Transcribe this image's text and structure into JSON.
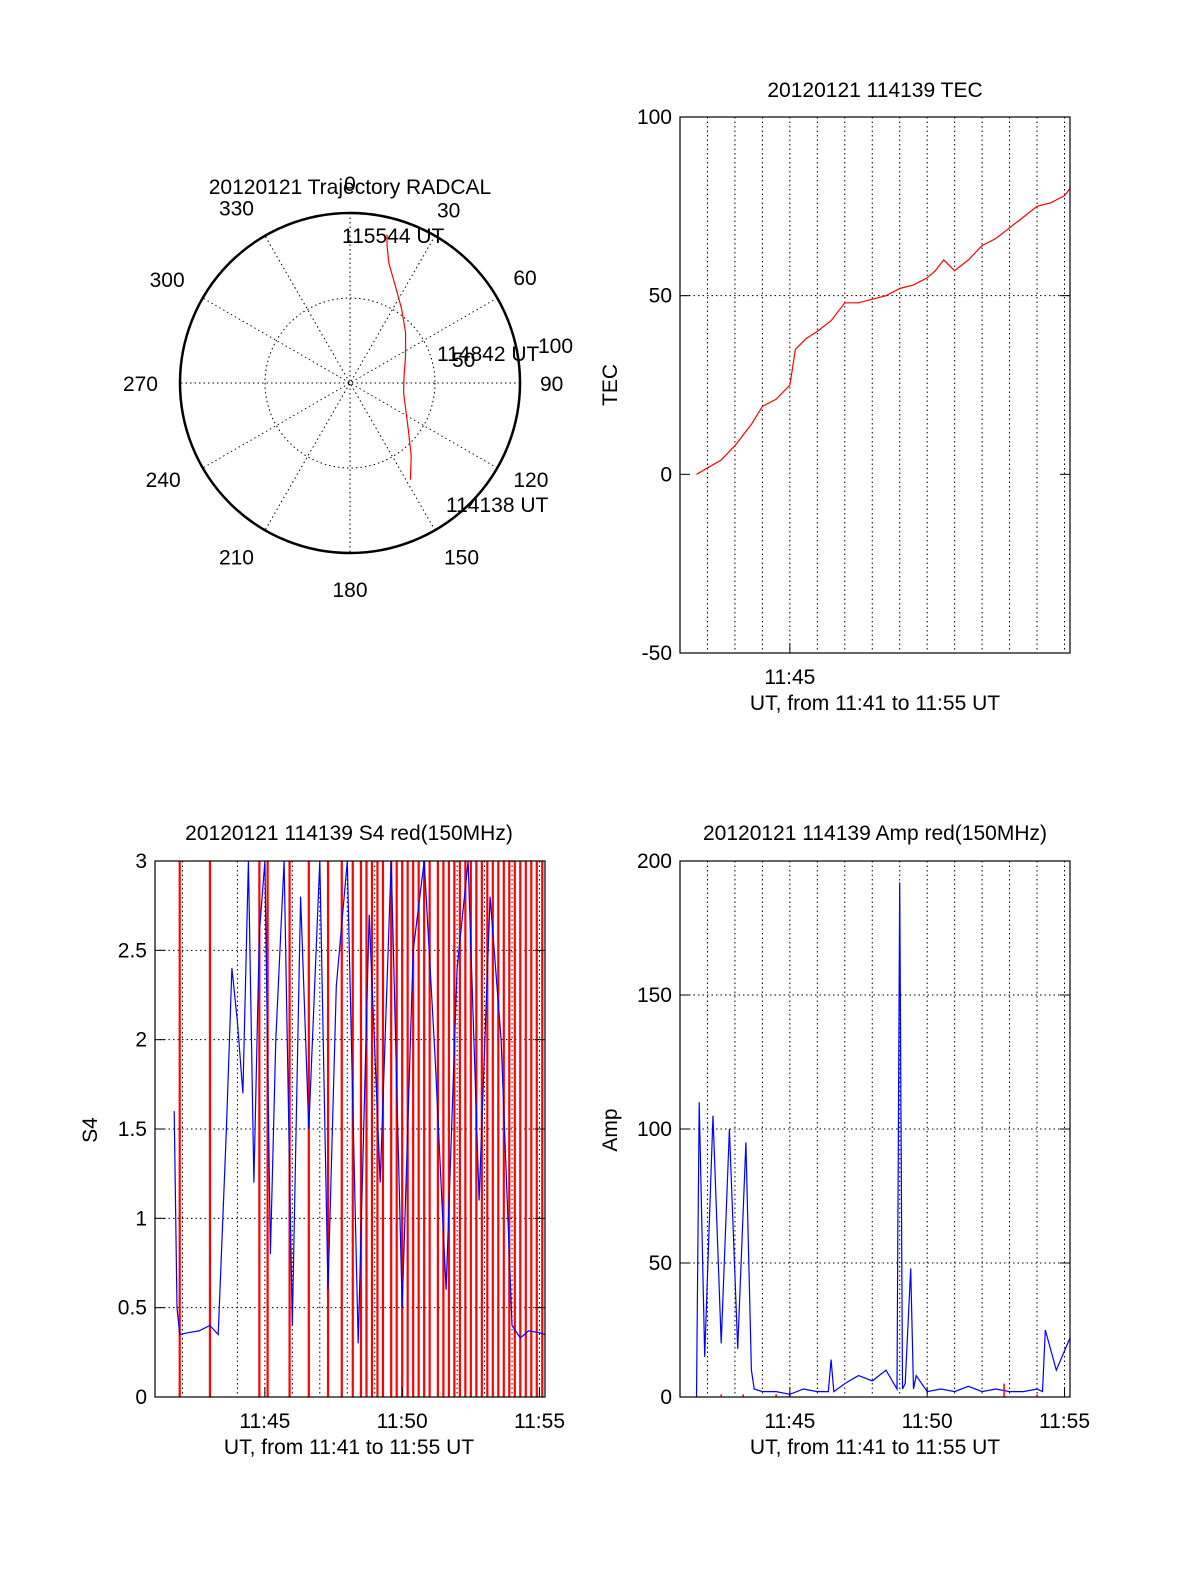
{
  "chart_data": [
    {
      "type": "polar-trajectory",
      "title": "20120121 Trajectory RADCAL",
      "azimuth_labels": [
        "0",
        "30",
        "60",
        "90",
        "120",
        "150",
        "180",
        "210",
        "240",
        "270",
        "300",
        "330"
      ],
      "radial_labels": [
        "50",
        "100"
      ],
      "annotations": {
        "end": "115544 UT",
        "mid": "114842 UT",
        "start": "114138 UT"
      },
      "series": [
        {
          "color": "#ff0000",
          "points_az_zenith": [
            [
              148,
              67
            ],
            [
              140,
              56
            ],
            [
              130,
              45
            ],
            [
              117,
              37
            ],
            [
              100,
              32
            ],
            [
              83,
              32
            ],
            [
              65,
              36
            ],
            [
              48,
              44
            ],
            [
              35,
              53
            ],
            [
              25,
              63
            ],
            [
              18,
              74
            ],
            [
              15,
              84
            ],
            [
              14,
              90
            ]
          ]
        }
      ],
      "rlim": [
        0,
        100
      ]
    },
    {
      "type": "line",
      "title": "20120121 114139 TEC",
      "xlabel": "UT, from 11:41 to 11:55 UT",
      "ylabel": "TEC",
      "x_tick_labels": [
        "11:45"
      ],
      "y_ticks": [
        "-50",
        "0",
        "50",
        "100"
      ],
      "ylim": [
        -50,
        100
      ],
      "xlim_min": [
        0,
        14.2
      ],
      "grid": "vertical dotted, horizontal at 50",
      "series": [
        {
          "color": "#ff0000",
          "x_min": [
            0.6,
            1.5,
            2.0,
            2.6,
            3.0,
            3.5,
            4.0,
            4.2,
            4.6,
            5.0,
            5.5,
            6.0,
            6.5,
            7.0,
            7.5,
            8.0,
            8.5,
            9.0,
            9.3,
            9.6,
            10.0,
            10.5,
            11.0,
            11.5,
            12.0,
            12.5,
            13.0,
            13.5,
            14.0,
            14.2
          ],
          "values": [
            0,
            4,
            8,
            14,
            19,
            21,
            25,
            35,
            38,
            40,
            43,
            48,
            48,
            49,
            50,
            52,
            53,
            55,
            57,
            60,
            57,
            60,
            64,
            66,
            69,
            72,
            75,
            76,
            78,
            80
          ]
        }
      ]
    },
    {
      "type": "line",
      "title": "20120121 114139 S4 red(150MHz)",
      "xlabel": "UT, from 11:41 to 11:55 UT",
      "ylabel": "S4",
      "x_tick_labels": [
        "11:45",
        "11:50",
        "11:55"
      ],
      "y_ticks": [
        "0",
        "0.5",
        "1",
        "1.5",
        "2",
        "2.5",
        "3"
      ],
      "ylim": [
        0,
        3
      ],
      "xlim_min": [
        0,
        14.2
      ],
      "grid": "dotted",
      "series": [
        {
          "color": "#0000ff",
          "x_min": [
            0.7,
            0.8,
            0.9,
            1.2,
            1.6,
            2.0,
            2.3,
            2.6,
            2.8,
            3.0,
            3.2,
            3.4,
            3.6,
            3.8,
            4.0,
            4.2,
            4.4,
            4.7,
            5.0,
            5.3,
            5.6,
            6.0,
            6.3,
            6.6,
            7.0,
            7.4,
            7.8,
            8.2,
            8.6,
            9.0,
            9.4,
            9.8,
            10.2,
            10.6,
            11.0,
            11.4,
            11.8,
            12.2,
            12.6,
            13.0,
            13.3,
            13.6,
            14.0,
            14.2
          ],
          "values": [
            1.6,
            0.5,
            0.35,
            0.36,
            0.37,
            0.4,
            0.35,
            1.5,
            2.4,
            2.1,
            1.7,
            3.0,
            1.2,
            2.6,
            3.0,
            0.8,
            2.0,
            3.0,
            0.4,
            2.8,
            1.5,
            3.0,
            0.6,
            2.3,
            3.0,
            0.3,
            2.7,
            1.2,
            3.0,
            0.5,
            2.5,
            3.0,
            1.9,
            0.6,
            2.4,
            3.0,
            1.1,
            2.8,
            2.0,
            0.4,
            0.33,
            0.37,
            0.36,
            0.35
          ]
        },
        {
          "color": "#ff0000",
          "x_min": [
            0.9,
            2.0,
            3.8,
            4.1,
            4.9,
            5.6,
            6.3,
            6.8,
            7.2,
            7.5,
            7.7,
            7.9,
            8.1,
            8.3,
            8.6,
            8.8,
            9.0,
            9.2,
            9.4,
            9.6,
            9.8,
            10.0,
            10.3,
            10.5,
            10.7,
            10.9,
            11.1,
            11.3,
            11.5,
            11.7,
            11.9,
            12.1,
            12.3,
            12.5,
            12.7,
            12.9,
            13.1,
            13.3,
            13.5,
            13.7,
            13.9,
            14.1
          ],
          "values": [
            3,
            3,
            3,
            3,
            3,
            3,
            3,
            3,
            3,
            3,
            3,
            3,
            3,
            3,
            3,
            3,
            3,
            3,
            3,
            3,
            3,
            3,
            3,
            3,
            3,
            3,
            3,
            3,
            3,
            3,
            3,
            3,
            3,
            3,
            3,
            3,
            3,
            3,
            3,
            3,
            3,
            3
          ]
        }
      ]
    },
    {
      "type": "line",
      "title": "20120121 114139 Amp red(150MHz)",
      "xlabel": "UT, from 11:41 to 11:55 UT",
      "ylabel": "Amp",
      "x_tick_labels": [
        "11:45",
        "11:50",
        "11:55"
      ],
      "y_ticks": [
        "0",
        "50",
        "100",
        "150",
        "200"
      ],
      "ylim": [
        0,
        200
      ],
      "xlim_min": [
        0,
        14.2
      ],
      "grid": "dotted",
      "series": [
        {
          "color": "#0000ff",
          "x_min": [
            0.6,
            0.7,
            0.9,
            1.2,
            1.5,
            1.8,
            2.1,
            2.4,
            2.6,
            2.7,
            3.0,
            3.5,
            4.0,
            4.5,
            5.0,
            5.4,
            5.5,
            5.6,
            6.0,
            6.5,
            7.0,
            7.5,
            7.9,
            8.0,
            8.1,
            8.2,
            8.4,
            8.5,
            8.6,
            9.0,
            9.5,
            10.0,
            10.5,
            11.0,
            11.5,
            12.0,
            12.5,
            13.0,
            13.2,
            13.3,
            13.7,
            14.2
          ],
          "values": [
            0,
            110,
            15,
            105,
            20,
            100,
            18,
            95,
            10,
            3,
            2,
            2,
            1,
            3,
            2,
            2,
            14,
            2,
            5,
            8,
            6,
            10,
            3,
            192,
            3,
            5,
            48,
            3,
            8,
            2,
            3,
            2,
            4,
            2,
            3,
            2,
            2,
            3,
            2,
            25,
            10,
            22
          ]
        },
        {
          "color": "#ff0000",
          "x_min": [
            1.5,
            2.3,
            3.5,
            4.0,
            11.8,
            13.0
          ],
          "values": [
            1,
            1,
            1,
            1,
            5,
            1
          ]
        }
      ]
    }
  ]
}
